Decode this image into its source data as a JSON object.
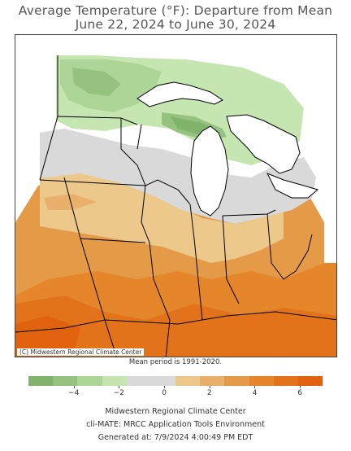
{
  "title_line1": "Average Temperature (°F): Departure from Mean",
  "title_line2": "June 22, 2024 to June 30, 2024",
  "copyright": "(C) Midwestern Regional Climate Center",
  "mean_period": "Mean period is 1991-2020.",
  "legend": {
    "colors": [
      "#7fb46a",
      "#95c37f",
      "#aed598",
      "#c6e6b1",
      "#d9d9d9",
      "#d9d9d9",
      "#ecc88a",
      "#e8b06a",
      "#e59a48",
      "#e5862a",
      "#e3731b",
      "#e0620f"
    ],
    "ticks": [
      {
        "label": "−4",
        "value": -4
      },
      {
        "label": "−2",
        "value": -2
      },
      {
        "label": "0",
        "value": 0
      },
      {
        "label": "2",
        "value": 2
      },
      {
        "label": "4",
        "value": 4
      },
      {
        "label": "6",
        "value": 6
      }
    ],
    "range": [
      -6,
      7
    ]
  },
  "footer": {
    "line1": "Midwestern Regional Climate Center",
    "line2": "cli-MATE: MRCC Application Tools Environment",
    "line3": "Generated at: 7/9/2024 4:00:49 PM EDT"
  }
}
